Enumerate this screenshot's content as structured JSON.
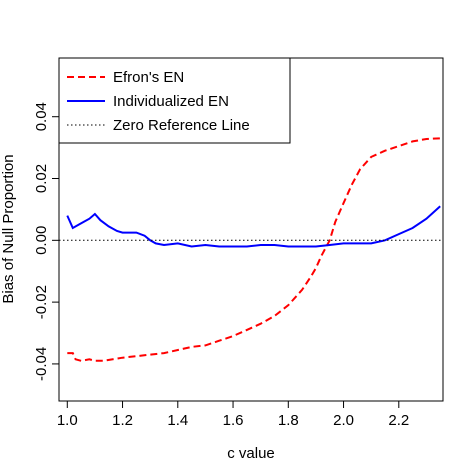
{
  "chart_data": {
    "type": "line",
    "xlabel": "c value",
    "ylabel": "Bias of Null Proportion",
    "xlim": [
      0.97,
      2.36
    ],
    "ylim": [
      -0.052,
      0.059
    ],
    "x_ticks": [
      1.0,
      1.2,
      1.4,
      1.6,
      1.8,
      2.0,
      2.2
    ],
    "x_tick_labels": [
      "1.0",
      "1.2",
      "1.4",
      "1.6",
      "1.8",
      "2.0",
      "2.2"
    ],
    "y_ticks": [
      -0.04,
      -0.02,
      0.0,
      0.02,
      0.04
    ],
    "y_tick_labels": [
      "-0.04",
      "-0.02",
      "0.00",
      "0.02",
      "0.04"
    ],
    "legend_position": "top-left",
    "series": [
      {
        "name": "Efron's EN",
        "color": "#ff0000",
        "style": "dashed",
        "x": [
          1.0,
          1.02,
          1.03,
          1.05,
          1.08,
          1.1,
          1.13,
          1.2,
          1.25,
          1.3,
          1.35,
          1.4,
          1.45,
          1.5,
          1.55,
          1.6,
          1.65,
          1.7,
          1.75,
          1.8,
          1.85,
          1.88,
          1.9,
          1.92,
          1.95,
          1.97,
          2.0,
          2.03,
          2.06,
          2.1,
          2.15,
          2.2,
          2.25,
          2.3,
          2.35
        ],
        "y": [
          -0.0365,
          -0.0365,
          -0.0385,
          -0.039,
          -0.0385,
          -0.039,
          -0.039,
          -0.038,
          -0.0375,
          -0.037,
          -0.0365,
          -0.0355,
          -0.0345,
          -0.034,
          -0.0325,
          -0.031,
          -0.029,
          -0.027,
          -0.0245,
          -0.021,
          -0.016,
          -0.012,
          -0.009,
          -0.005,
          0.0,
          0.006,
          0.012,
          0.018,
          0.023,
          0.027,
          0.029,
          0.0305,
          0.032,
          0.0328,
          0.033
        ]
      },
      {
        "name": "Individualized EN",
        "color": "#0000ff",
        "style": "solid",
        "x": [
          1.0,
          1.02,
          1.04,
          1.06,
          1.08,
          1.1,
          1.12,
          1.15,
          1.18,
          1.2,
          1.25,
          1.28,
          1.3,
          1.32,
          1.35,
          1.4,
          1.45,
          1.5,
          1.55,
          1.6,
          1.65,
          1.7,
          1.75,
          1.8,
          1.85,
          1.9,
          1.95,
          2.0,
          2.05,
          2.1,
          2.15,
          2.2,
          2.25,
          2.3,
          2.35
        ],
        "y": [
          0.008,
          0.004,
          0.005,
          0.006,
          0.007,
          0.0085,
          0.0065,
          0.0045,
          0.003,
          0.0025,
          0.0025,
          0.0015,
          0.0,
          -0.001,
          -0.0015,
          -0.001,
          -0.002,
          -0.0015,
          -0.002,
          -0.002,
          -0.002,
          -0.0015,
          -0.0015,
          -0.002,
          -0.002,
          -0.002,
          -0.0015,
          -0.001,
          -0.001,
          -0.001,
          0.0,
          0.002,
          0.004,
          0.007,
          0.011
        ]
      },
      {
        "name": "Zero Reference Line",
        "color": "#000000",
        "style": "dotted",
        "x": [
          0.97,
          2.36
        ],
        "y": [
          0.0,
          0.0
        ]
      }
    ]
  }
}
